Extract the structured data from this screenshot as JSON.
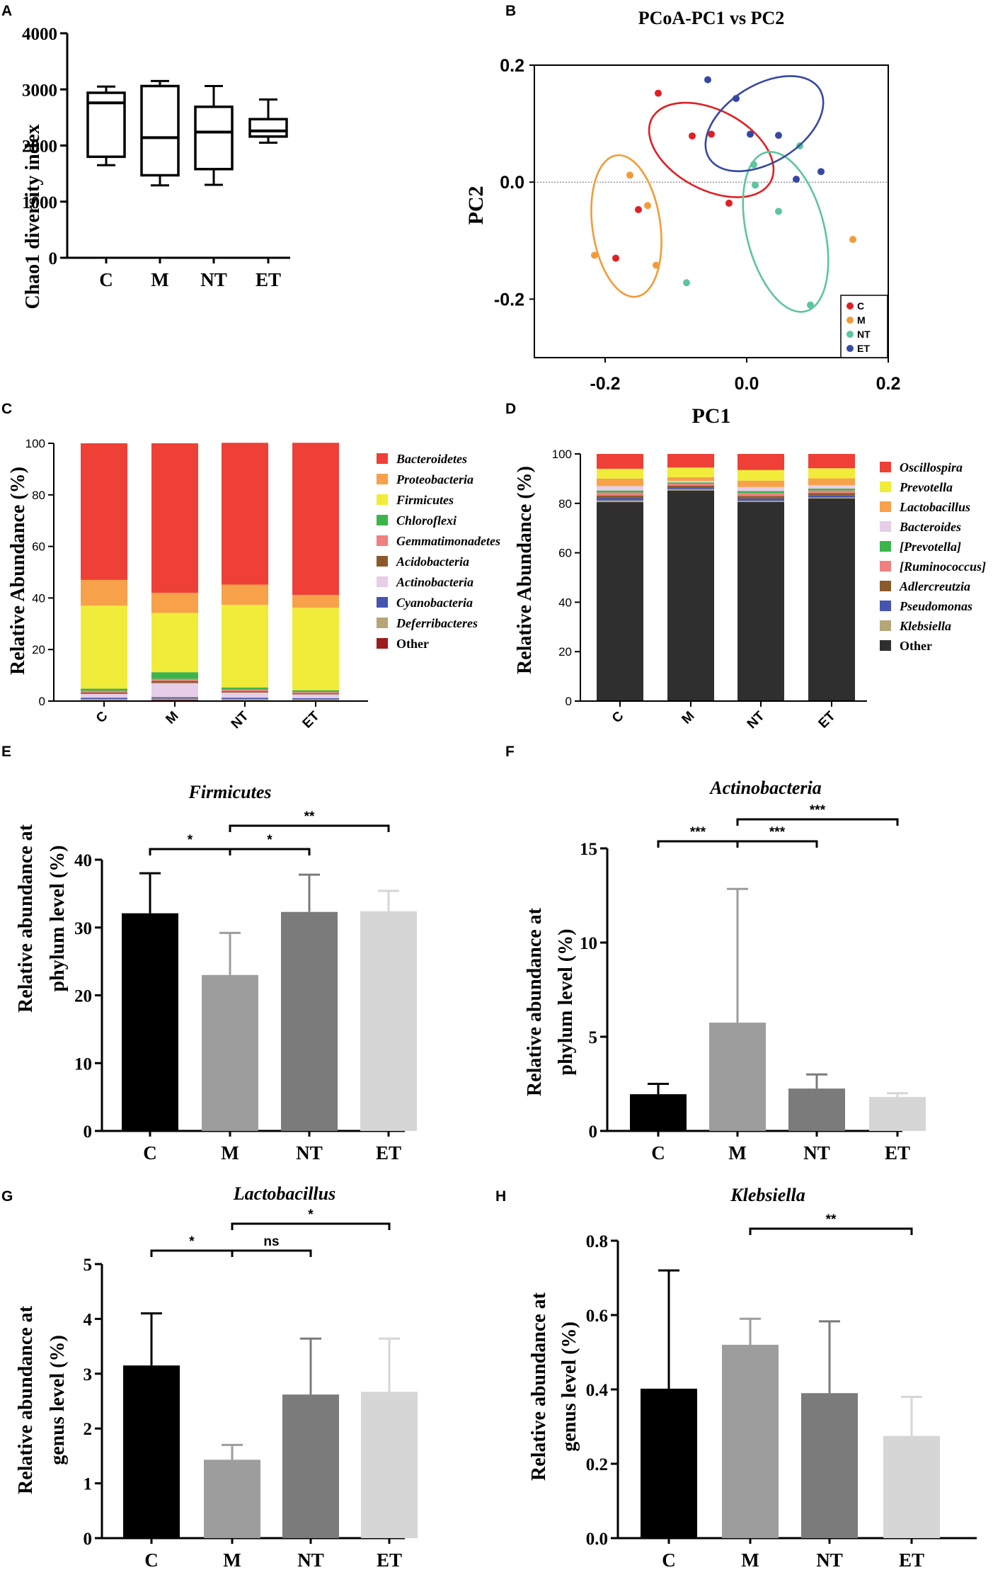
{
  "colors": {
    "groupBars": [
      "#000000",
      "#9d9d9d",
      "#7b7b7b",
      "#d6d6d6"
    ],
    "pcoa": {
      "C": "#e01f25",
      "M": "#f29b38",
      "NT": "#5cc59c",
      "ET": "#3448a4"
    }
  },
  "chart_data": [
    {
      "id": "A",
      "letter": "A",
      "type": "box",
      "title": "",
      "ylabel": "Chao1 diversity index",
      "categories": [
        "C",
        "M",
        "NT",
        "ET"
      ],
      "ylim": [
        0,
        4000
      ],
      "yticks": [
        0,
        1000,
        2000,
        3000,
        4000
      ],
      "boxes": [
        {
          "min": 1650,
          "q1": 1800,
          "median": 2760,
          "q3": 2940,
          "max": 3050
        },
        {
          "min": 1290,
          "q1": 1470,
          "median": 2140,
          "q3": 3060,
          "max": 3150
        },
        {
          "min": 1300,
          "q1": 1580,
          "median": 2240,
          "q3": 2690,
          "max": 3060
        },
        {
          "min": 2050,
          "q1": 2160,
          "median": 2260,
          "q3": 2470,
          "max": 2820
        }
      ]
    },
    {
      "id": "B",
      "letter": "B",
      "type": "scatter",
      "title": "PCoA-PC1 vs  PC2",
      "xlabel": "PC1",
      "ylabel": "PC2",
      "xlim": [
        -0.3,
        0.2
      ],
      "ylim": [
        -0.3,
        0.2
      ],
      "xticks": [
        -0.2,
        0.0,
        0.2
      ],
      "yticks": [
        -0.2,
        0.0,
        0.2
      ],
      "xticklabels": [
        "-0.2",
        "0.0",
        "0.2"
      ],
      "yticklabels": [
        "-0.2",
        "0.0",
        "0.2"
      ],
      "legend": [
        "C",
        "M",
        "NT",
        "ET"
      ],
      "series": [
        {
          "name": "C",
          "points": [
            [
              -0.125,
              0.152
            ],
            [
              -0.077,
              0.079
            ],
            [
              -0.05,
              0.082
            ],
            [
              -0.025,
              -0.036
            ],
            [
              -0.185,
              -0.13
            ],
            [
              -0.153,
              -0.047
            ]
          ],
          "ellipse": {
            "cx": -0.05,
            "cy": 0.055,
            "rx": 0.095,
            "ry": 0.068,
            "angle": 28
          }
        },
        {
          "name": "M",
          "points": [
            [
              -0.165,
              0.012
            ],
            [
              -0.14,
              -0.04
            ],
            [
              -0.215,
              -0.125
            ],
            [
              -0.128,
              -0.142
            ],
            [
              0.15,
              -0.098
            ]
          ],
          "ellipse": {
            "cx": -0.17,
            "cy": -0.075,
            "rx": 0.048,
            "ry": 0.122,
            "angle": -8
          }
        },
        {
          "name": "NT",
          "points": [
            [
              0.075,
              0.062
            ],
            [
              0.01,
              0.03
            ],
            [
              0.012,
              -0.005
            ],
            [
              0.045,
              -0.05
            ],
            [
              0.09,
              -0.21
            ],
            [
              -0.085,
              -0.172
            ]
          ],
          "ellipse": {
            "cx": 0.055,
            "cy": -0.085,
            "rx": 0.055,
            "ry": 0.14,
            "angle": -14
          }
        },
        {
          "name": "ET",
          "points": [
            [
              -0.055,
              0.175
            ],
            [
              -0.015,
              0.143
            ],
            [
              0.005,
              0.082
            ],
            [
              0.045,
              0.08
            ],
            [
              0.07,
              0.005
            ],
            [
              0.105,
              0.018
            ]
          ],
          "ellipse": {
            "cx": 0.025,
            "cy": 0.1,
            "rx": 0.092,
            "ry": 0.066,
            "angle": -32
          }
        }
      ]
    },
    {
      "id": "C",
      "letter": "C",
      "type": "bar",
      "stacked": true,
      "ylabel": "Relative Abundance (%)",
      "categories": [
        "C",
        "M",
        "NT",
        "ET"
      ],
      "ylim": [
        0,
        100
      ],
      "yticks": [
        0,
        20,
        40,
        60,
        80,
        100
      ],
      "legend_italic": [
        true,
        true,
        true,
        true,
        true,
        true,
        true,
        true,
        true,
        false
      ],
      "series": [
        {
          "name": "Other",
          "color": "#9b1c1c",
          "values": [
            0.3,
            0.5,
            0.3,
            0.3
          ]
        },
        {
          "name": "Deferribacteres",
          "color": "#b5a577",
          "values": [
            0.5,
            0.5,
            0.5,
            0.4
          ]
        },
        {
          "name": "Cyanobacteria",
          "color": "#4455b0",
          "values": [
            0.5,
            0.5,
            0.5,
            0.4
          ]
        },
        {
          "name": "Actinobacteria",
          "color": "#e6cde8",
          "values": [
            1.5,
            5.5,
            2.0,
            1.5
          ]
        },
        {
          "name": "Acidobacteria",
          "color": "#8b5a2b",
          "values": [
            0.5,
            0.8,
            0.5,
            0.4
          ]
        },
        {
          "name": "Gemmatimonadetes",
          "color": "#f08080",
          "values": [
            0.7,
            0.8,
            0.7,
            0.5
          ]
        },
        {
          "name": "Chloroflexi",
          "color": "#3cb44b",
          "values": [
            0.8,
            2.6,
            0.8,
            0.7
          ]
        },
        {
          "name": "Firmicutes",
          "color": "#f1ec3a",
          "values": [
            32.2,
            23.0,
            32.0,
            32.0
          ]
        },
        {
          "name": "Proteobacteria",
          "color": "#f7a14a",
          "values": [
            10.0,
            7.8,
            7.9,
            5.0
          ]
        },
        {
          "name": "Bacteroidetes",
          "color": "#ee4036",
          "values": [
            53.0,
            58.0,
            55.0,
            59.0
          ]
        }
      ],
      "legend_order": [
        "Bacteroidetes",
        "Proteobacteria",
        "Firmicutes",
        "Chloroflexi",
        "Gemmatimonadetes",
        "Acidobacteria",
        "Actinobacteria",
        "Cyanobacteria",
        "Deferribacteres",
        "Other"
      ]
    },
    {
      "id": "D",
      "letter": "D",
      "type": "bar",
      "stacked": true,
      "title": "PC1",
      "ylabel": "Relative Abundance (%)",
      "categories": [
        "C",
        "M",
        "NT",
        "ET"
      ],
      "ylim": [
        0,
        100
      ],
      "yticks": [
        0,
        20,
        40,
        60,
        80,
        100
      ],
      "series": [
        {
          "name": "Other",
          "color": "#2f2f2f",
          "values": [
            80.5,
            85.2,
            80.6,
            82.0
          ]
        },
        {
          "name": "Klebsiella",
          "color": "#b5a577",
          "values": [
            0.7,
            0.6,
            0.5,
            0.4
          ]
        },
        {
          "name": "Pseudomonas",
          "color": "#4455b0",
          "values": [
            1.0,
            0.6,
            0.9,
            0.9
          ]
        },
        {
          "name": "Adlercreutzia",
          "color": "#8b5a2b",
          "values": [
            1.0,
            0.8,
            1.0,
            0.9
          ]
        },
        {
          "name": "[Ruminococcus]",
          "color": "#f08080",
          "values": [
            1.2,
            0.8,
            1.2,
            1.0
          ]
        },
        {
          "name": "[Prevotella]",
          "color": "#3cb44b",
          "values": [
            0.8,
            0.5,
            0.8,
            0.8
          ]
        },
        {
          "name": "Bacteroides",
          "color": "#e6cde8",
          "values": [
            1.8,
            0.6,
            1.6,
            1.4
          ]
        },
        {
          "name": "Lactobacillus",
          "color": "#f7a14a",
          "values": [
            3.0,
            1.5,
            2.6,
            2.7
          ]
        },
        {
          "name": "Prevotella",
          "color": "#f1ec3a",
          "values": [
            4.0,
            3.9,
            4.3,
            4.1
          ]
        },
        {
          "name": "Oscillospira",
          "color": "#ee4036",
          "values": [
            6.0,
            5.5,
            6.5,
            5.8
          ]
        }
      ],
      "legend_order": [
        "Oscillospira",
        "Prevotella",
        "Lactobacillus",
        "Bacteroides",
        "[Prevotella]",
        "[Ruminococcus]",
        "Adlercreutzia",
        "Pseudomonas",
        "Klebsiella",
        "Other"
      ]
    },
    {
      "id": "E",
      "letter": "E",
      "type": "bar",
      "title": "Firmicutes",
      "ylabel": [
        "Relative abundance at",
        "phylum level (%)"
      ],
      "categories": [
        "C",
        "M",
        "NT",
        "ET"
      ],
      "values": [
        32.1,
        23.0,
        32.3,
        32.4
      ],
      "errors": [
        5.9,
        6.2,
        5.5,
        3.0
      ],
      "ylim": [
        0,
        40
      ],
      "yticks": [
        0,
        10,
        20,
        30,
        40
      ],
      "significance": [
        {
          "from": 0,
          "to": 1,
          "label": "*"
        },
        {
          "from": 1,
          "to": 2,
          "label": "*"
        },
        {
          "from": 1,
          "to": 3,
          "label": "**"
        }
      ]
    },
    {
      "id": "F",
      "letter": "F",
      "type": "bar",
      "title": "Actinobacteria",
      "ylabel": [
        "Relative abundance at",
        "phylum level (%)"
      ],
      "categories": [
        "C",
        "M",
        "NT",
        "ET"
      ],
      "values": [
        1.95,
        5.75,
        2.25,
        1.8
      ],
      "errors": [
        0.55,
        7.1,
        0.75,
        0.2
      ],
      "ylim": [
        0,
        15
      ],
      "yticks": [
        0,
        5,
        10,
        15
      ],
      "significance": [
        {
          "from": 0,
          "to": 1,
          "label": "***"
        },
        {
          "from": 1,
          "to": 2,
          "label": "***"
        },
        {
          "from": 1,
          "to": 3,
          "label": "***"
        }
      ]
    },
    {
      "id": "G",
      "letter": "G",
      "type": "bar",
      "title": "Lactobacillus",
      "ylabel": [
        "Relative abundance at",
        "genus level  (%)"
      ],
      "categories": [
        "C",
        "M",
        "NT",
        "ET"
      ],
      "values": [
        3.15,
        1.43,
        2.62,
        2.67
      ],
      "errors": [
        0.95,
        0.27,
        1.02,
        0.97
      ],
      "ylim": [
        0,
        5
      ],
      "yticks": [
        0,
        1,
        2,
        3,
        4,
        5
      ],
      "significance": [
        {
          "from": 0,
          "to": 1,
          "label": "*"
        },
        {
          "from": 1,
          "to": 2,
          "label": "ns"
        },
        {
          "from": 1,
          "to": 3,
          "label": "*"
        }
      ]
    },
    {
      "id": "H",
      "letter": "H",
      "type": "bar",
      "title": "Klebsiella",
      "ylabel": [
        "Relative abundance at",
        "genus level (%)"
      ],
      "categories": [
        "C",
        "M",
        "NT",
        "ET"
      ],
      "values": [
        0.402,
        0.52,
        0.39,
        0.275
      ],
      "errors": [
        0.318,
        0.07,
        0.193,
        0.105
      ],
      "ylim": [
        0,
        0.8
      ],
      "yticks": [
        0.0,
        0.2,
        0.4,
        0.6,
        0.8
      ],
      "yticklabels": [
        "0.0",
        "0.2",
        "0.4",
        "0.6",
        "0.8"
      ],
      "significance": [
        {
          "from": 1,
          "to": 3,
          "label": "**"
        }
      ]
    }
  ]
}
